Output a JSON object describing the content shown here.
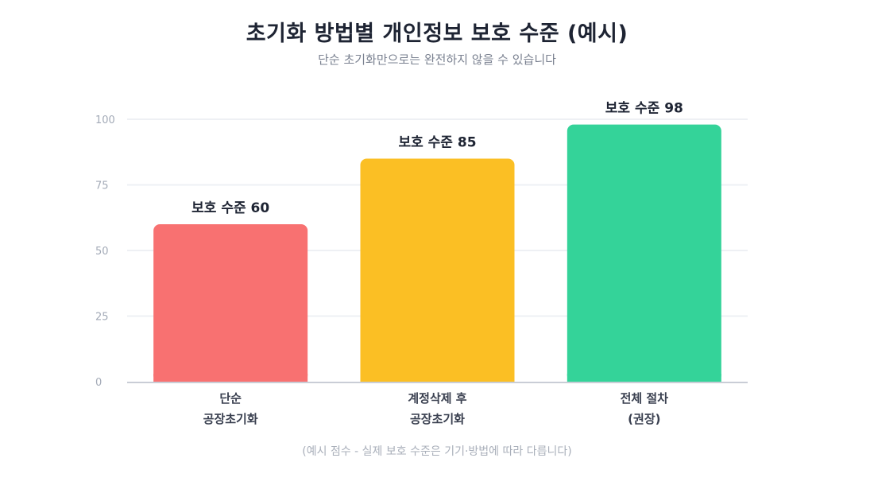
{
  "header": {
    "title": "초기화 방법별 개인정보 보호 수준 (예시)",
    "subtitle": "단순 초기화만으로는 완전하지 않을 수 있습니다"
  },
  "footnote": "(예시 점수 - 실제 보호 수준은 기기·방법에 따라 다릅니다)",
  "colors": {
    "bar_red": "#f87171",
    "bar_yellow": "#fbbf24",
    "bar_green": "#34d399",
    "grid": "#eef0f4",
    "axis": "#c9cdd6"
  },
  "chart_data": {
    "type": "bar",
    "categories": [
      [
        "단순",
        "공장초기화"
      ],
      [
        "계정삭제 후",
        "공장초기화"
      ],
      [
        "전체 절차",
        "(권장)"
      ]
    ],
    "values": [
      60,
      85,
      98
    ],
    "value_labels": [
      "보호 수준 60",
      "보호 수준 85",
      "보호 수준 98"
    ],
    "bar_colors": [
      "#f87171",
      "#fbbf24",
      "#34d399"
    ],
    "yticks": [
      0,
      25,
      50,
      75,
      100
    ],
    "ylim": [
      0,
      100
    ],
    "grid": true,
    "legend": "none"
  }
}
